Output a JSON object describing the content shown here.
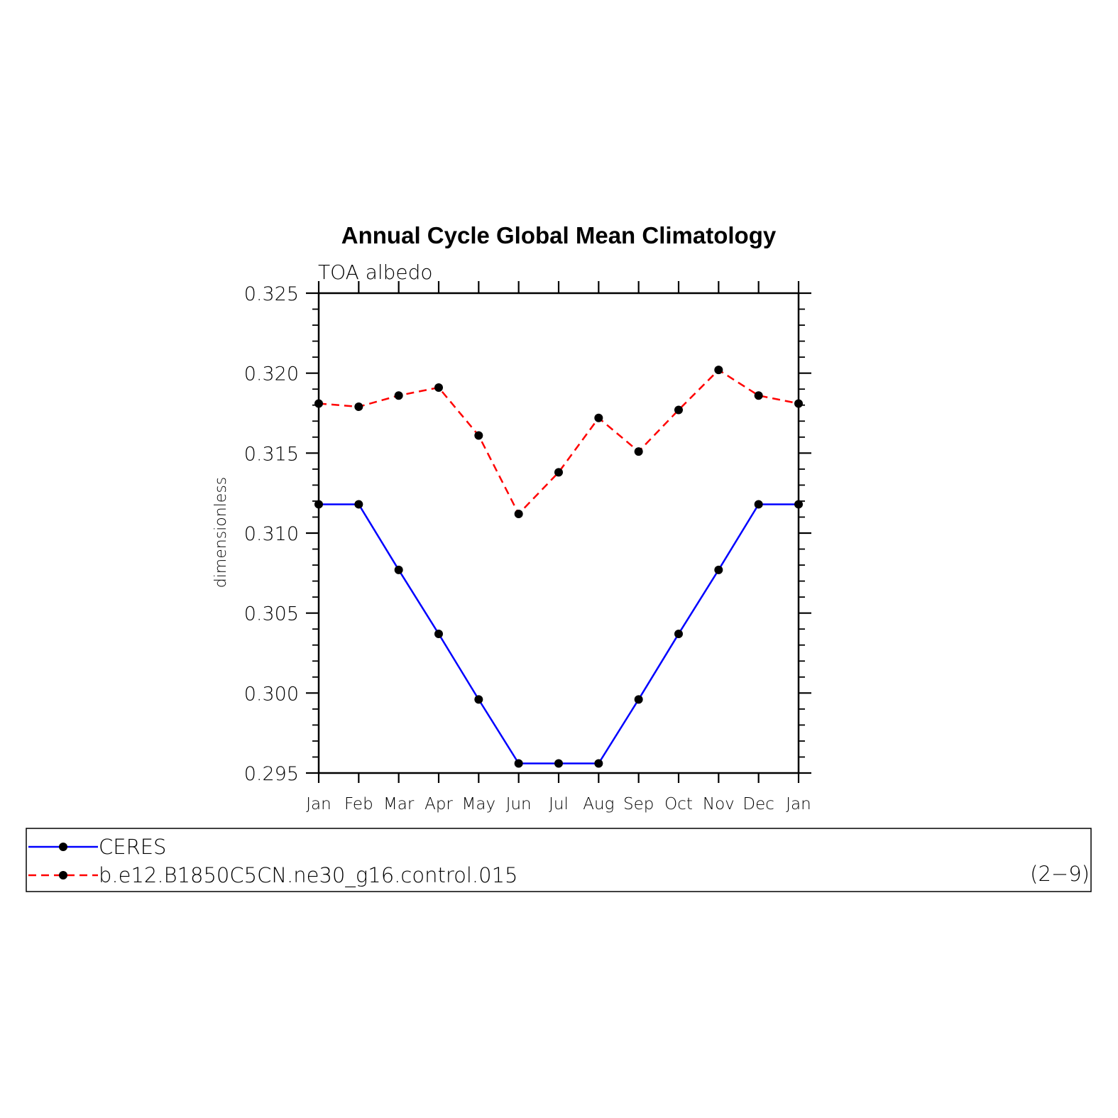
{
  "chart_data": {
    "type": "line",
    "title": "Annual Cycle Global Mean Climatology",
    "subtitle": "TOA albedo",
    "xlabel": "",
    "ylabel": "dimensionless",
    "categories": [
      "Jan",
      "Feb",
      "Mar",
      "Apr",
      "May",
      "Jun",
      "Jul",
      "Aug",
      "Sep",
      "Oct",
      "Nov",
      "Dec",
      "Jan"
    ],
    "ylim": [
      0.295,
      0.325
    ],
    "yticks": [
      "0.295",
      "0.300",
      "0.305",
      "0.310",
      "0.315",
      "0.320",
      "0.325"
    ],
    "grid": false,
    "legend_position": "bottom",
    "series": [
      {
        "name": "CERES",
        "color": "#0000ff",
        "style": "solid",
        "values": [
          0.3118,
          0.3118,
          0.3077,
          0.3037,
          0.2996,
          0.2956,
          0.2956,
          0.2956,
          0.2996,
          0.3037,
          0.3077,
          0.3118,
          0.3118
        ]
      },
      {
        "name": "b.e12.B1850C5CN.ne30_g16.control.015",
        "color": "#ff0000",
        "style": "dashed",
        "values": [
          0.3181,
          0.3179,
          0.3186,
          0.3191,
          0.3161,
          0.3112,
          0.3138,
          0.3172,
          0.3151,
          0.3177,
          0.3202,
          0.3186,
          0.3181
        ]
      }
    ],
    "annotation": "(2−9)"
  }
}
